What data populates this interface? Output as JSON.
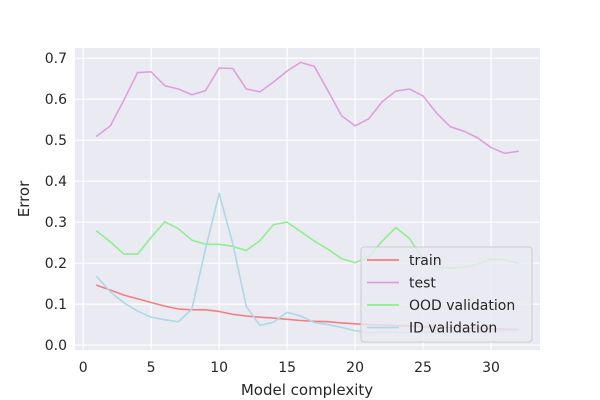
{
  "chart_data": {
    "type": "line",
    "xlabel": "Model complexity",
    "ylabel": "Error",
    "xlim": [
      -0.6,
      33.6
    ],
    "ylim": [
      -0.012,
      0.725
    ],
    "xticks": [
      0,
      5,
      10,
      15,
      20,
      25,
      30
    ],
    "yticks": [
      0.0,
      0.1,
      0.2,
      0.3,
      0.4,
      0.5,
      0.6,
      0.7
    ],
    "grid": true,
    "legend_position": "lower-right",
    "background": "#eaeaf2",
    "x": [
      1,
      2,
      3,
      4,
      5,
      6,
      7,
      8,
      9,
      10,
      11,
      12,
      13,
      14,
      15,
      16,
      17,
      18,
      19,
      20,
      21,
      22,
      23,
      24,
      25,
      26,
      27,
      28,
      29,
      30,
      31,
      32
    ],
    "series": [
      {
        "name": "train",
        "color": "#f08080",
        "values": [
          0.146,
          0.134,
          0.122,
          0.113,
          0.104,
          0.095,
          0.088,
          0.086,
          0.086,
          0.082,
          0.075,
          0.071,
          0.068,
          0.066,
          0.063,
          0.06,
          0.058,
          0.057,
          0.054,
          0.052,
          0.05,
          0.049,
          0.048,
          0.046,
          0.045,
          0.044,
          0.043,
          0.042,
          0.041,
          0.04,
          0.039,
          0.038
        ]
      },
      {
        "name": "test",
        "color": "#dda0dd",
        "values": [
          0.51,
          0.535,
          0.598,
          0.665,
          0.667,
          0.633,
          0.625,
          0.611,
          0.621,
          0.676,
          0.675,
          0.625,
          0.618,
          0.642,
          0.669,
          0.69,
          0.68,
          0.621,
          0.56,
          0.535,
          0.552,
          0.594,
          0.62,
          0.625,
          0.608,
          0.566,
          0.533,
          0.522,
          0.506,
          0.482,
          0.468,
          0.473
        ]
      },
      {
        "name": "OOD validation",
        "color": "#90ee90",
        "values": [
          0.278,
          0.252,
          0.222,
          0.222,
          0.263,
          0.301,
          0.284,
          0.256,
          0.246,
          0.246,
          0.241,
          0.231,
          0.255,
          0.294,
          0.3,
          0.277,
          0.254,
          0.234,
          0.211,
          0.201,
          0.215,
          0.254,
          0.287,
          0.26,
          0.21,
          0.19,
          0.188,
          0.19,
          0.197,
          0.21,
          0.208,
          0.2
        ]
      },
      {
        "name": "ID validation",
        "color": "#add8e6",
        "values": [
          0.167,
          0.13,
          0.103,
          0.083,
          0.068,
          0.062,
          0.057,
          0.088,
          0.235,
          0.37,
          0.248,
          0.094,
          0.048,
          0.056,
          0.08,
          0.071,
          0.055,
          0.05,
          0.043,
          0.035,
          0.03,
          0.032,
          0.031,
          0.031,
          0.032,
          0.031,
          0.031,
          0.032,
          0.033,
          0.034,
          0.035,
          0.036
        ]
      }
    ]
  }
}
